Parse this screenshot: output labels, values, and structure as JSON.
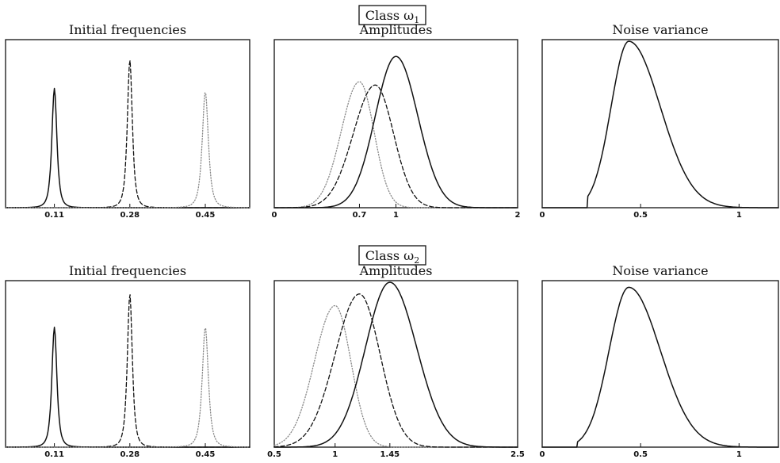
{
  "chart_data": [
    {
      "type": "line",
      "row": "Class ω1",
      "title": "Initial frequencies",
      "xlim": [
        0,
        0.55
      ],
      "ylim": [
        0,
        1
      ],
      "xticks": [
        "0.11",
        "0.28",
        "0.45"
      ],
      "xtick_values": [
        0.11,
        0.28,
        0.45
      ],
      "grid": false,
      "series": [
        {
          "style": "solid",
          "color": "#111111",
          "peak_x": 0.11,
          "peak_y": 0.71,
          "width": 0.009
        },
        {
          "style": "dashed",
          "color": "#111111",
          "peak_x": 0.28,
          "peak_y": 0.88,
          "width": 0.009
        },
        {
          "style": "dotted",
          "color": "#888888",
          "peak_x": 0.45,
          "peak_y": 0.69,
          "width": 0.011
        }
      ]
    },
    {
      "type": "line",
      "row": "Class ω1",
      "title": "Amplitudes",
      "xlim": [
        0,
        2
      ],
      "ylim": [
        0,
        1
      ],
      "xticks": [
        "0",
        "0.7",
        "1",
        "2"
      ],
      "xtick_values": [
        0,
        0.7,
        1,
        2
      ],
      "grid": false,
      "series": [
        {
          "style": "dotted",
          "color": "#888888",
          "peak_x": 0.7,
          "peak_y": 0.75,
          "sd_left": 0.15,
          "sd_right": 0.12
        },
        {
          "style": "dashed",
          "color": "#111111",
          "peak_x": 0.83,
          "peak_y": 0.73,
          "sd_left": 0.18,
          "sd_right": 0.15
        },
        {
          "style": "solid",
          "color": "#111111",
          "peak_x": 1.0,
          "peak_y": 0.9,
          "sd_left": 0.17,
          "sd_right": 0.18
        }
      ]
    },
    {
      "type": "line",
      "row": "Class ω1",
      "title": "Noise variance",
      "xlim": [
        0,
        1.2
      ],
      "ylim": [
        0,
        1
      ],
      "xticks": [
        "0",
        "0.5",
        "1"
      ],
      "xtick_values": [
        0,
        0.5,
        1
      ],
      "grid": false,
      "series": [
        {
          "style": "solid",
          "color": "#111111",
          "peak_x": 0.44,
          "peak_y": 0.99,
          "sd_left": 0.09,
          "sd_right": 0.16,
          "start_x": 0.23
        }
      ]
    },
    {
      "type": "line",
      "row": "Class ω2",
      "title": "Initial frequencies",
      "xlim": [
        0,
        0.55
      ],
      "ylim": [
        0,
        1
      ],
      "xticks": [
        "0.11",
        "0.28",
        "0.45"
      ],
      "xtick_values": [
        0.11,
        0.28,
        0.45
      ],
      "grid": false,
      "series": [
        {
          "style": "solid",
          "color": "#111111",
          "peak_x": 0.11,
          "peak_y": 0.72,
          "width": 0.009
        },
        {
          "style": "dashed",
          "color": "#111111",
          "peak_x": 0.28,
          "peak_y": 0.92,
          "width": 0.009
        },
        {
          "style": "dotted",
          "color": "#888888",
          "peak_x": 0.45,
          "peak_y": 0.72,
          "width": 0.011
        }
      ]
    },
    {
      "type": "line",
      "row": "Class ω2",
      "title": "Amplitudes",
      "xlim": [
        0.5,
        2.5
      ],
      "ylim": [
        0,
        1
      ],
      "xticks": [
        "0.5",
        "1",
        "1.45",
        "2.5"
      ],
      "xtick_values": [
        0.5,
        1,
        1.45,
        2.5
      ],
      "grid": false,
      "series": [
        {
          "style": "dotted",
          "color": "#888888",
          "peak_x": 1.0,
          "peak_y": 0.85,
          "sd_left": 0.17,
          "sd_right": 0.13
        },
        {
          "style": "dashed",
          "color": "#111111",
          "peak_x": 1.2,
          "peak_y": 0.92,
          "sd_left": 0.2,
          "sd_right": 0.17
        },
        {
          "style": "solid",
          "color": "#111111",
          "peak_x": 1.45,
          "peak_y": 0.99,
          "sd_left": 0.2,
          "sd_right": 0.22
        }
      ]
    },
    {
      "type": "line",
      "row": "Class ω2",
      "title": "Noise variance",
      "xlim": [
        0,
        1.2
      ],
      "ylim": [
        0,
        1
      ],
      "xticks": [
        "0",
        "0.5",
        "1"
      ],
      "xtick_values": [
        0,
        0.5,
        1
      ],
      "grid": false,
      "series": [
        {
          "style": "solid",
          "color": "#111111",
          "peak_x": 0.44,
          "peak_y": 0.96,
          "sd_left": 0.1,
          "sd_right": 0.16,
          "start_x": 0.18
        }
      ]
    }
  ],
  "class_labels": [
    {
      "text": "Class ω",
      "sub": "1"
    },
    {
      "text": "Class ω",
      "sub": "2"
    }
  ]
}
